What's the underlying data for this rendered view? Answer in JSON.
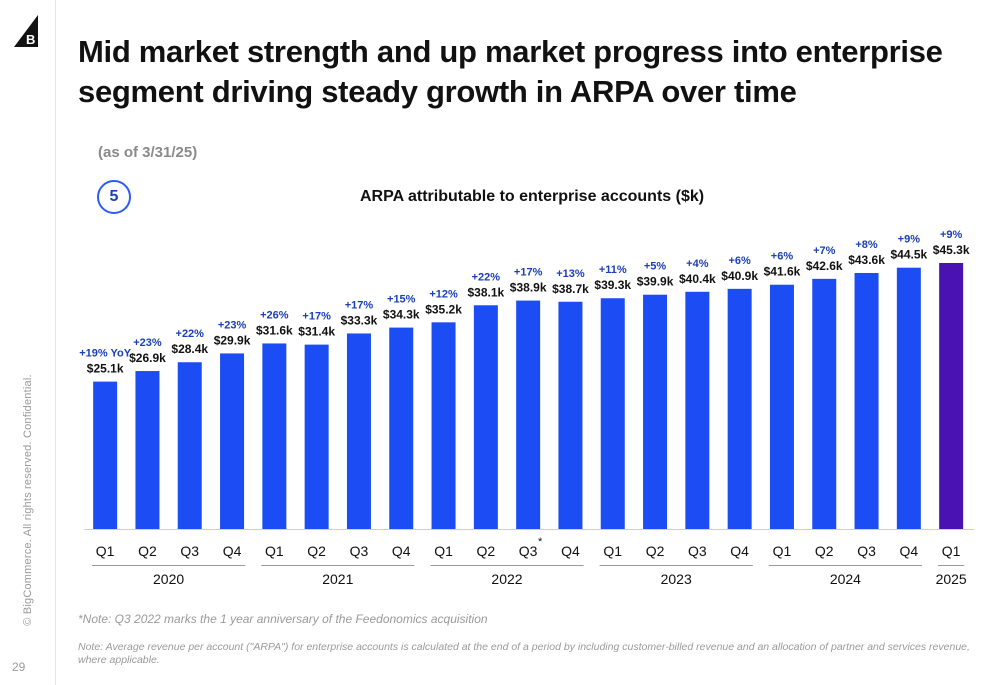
{
  "slide": {
    "title": "Mid market strength and up market progress into enterprise segment driving steady growth in ARPA over time",
    "as_of": "(as of 3/31/25)",
    "callout_number": "5",
    "page_number": "29",
    "side_text": "© BigCommerce.  All rights reserved. Confidential.",
    "note_star": "*Note: Q3 2022 marks the 1 year anniversary of the Feedonomics acquisition",
    "note_main": "Note: Average revenue per account (\"ARPA\") for enterprise accounts is calculated at the end of a period by including customer-billed revenue and an allocation of partner and services revenue, where applicable."
  },
  "colors": {
    "bar": "#1c4df4",
    "bar_latest": "#4a12b0",
    "growth_label": "#1a3fb8",
    "value_label": "#111111",
    "accent": "#2d5cf6"
  },
  "chart_data": {
    "type": "bar",
    "title": "ARPA attributable to enterprise accounts ($k)",
    "categories": [
      "Q1",
      "Q2",
      "Q3",
      "Q4",
      "Q1",
      "Q2",
      "Q3",
      "Q4",
      "Q1",
      "Q2",
      "Q3",
      "Q4",
      "Q1",
      "Q2",
      "Q3",
      "Q4",
      "Q1",
      "Q2",
      "Q3",
      "Q4",
      "Q1"
    ],
    "years": [
      {
        "label": "2020",
        "quarters": 4
      },
      {
        "label": "2021",
        "quarters": 4
      },
      {
        "label": "2022",
        "quarters": 4
      },
      {
        "label": "2023",
        "quarters": 4
      },
      {
        "label": "2024",
        "quarters": 4
      },
      {
        "label": "2025",
        "quarters": 1
      }
    ],
    "values": [
      25.1,
      26.9,
      28.4,
      29.9,
      31.6,
      31.4,
      33.3,
      34.3,
      35.2,
      38.1,
      38.9,
      38.7,
      39.3,
      39.9,
      40.4,
      40.9,
      41.6,
      42.6,
      43.6,
      44.5,
      45.3
    ],
    "value_labels": [
      "$25.1k",
      "$26.9k",
      "$28.4k",
      "$29.9k",
      "$31.6k",
      "$31.4k",
      "$33.3k",
      "$34.3k",
      "$35.2k",
      "$38.1k",
      "$38.9k",
      "$38.7k",
      "$39.3k",
      "$39.9k",
      "$40.4k",
      "$40.9k",
      "$41.6k",
      "$42.6k",
      "$43.6k",
      "$44.5k",
      "$45.3k"
    ],
    "growth_labels": [
      "+19% YoY",
      "+23%",
      "+22%",
      "+23%",
      "+26%",
      "+17%",
      "+17%",
      "+15%",
      "+12%",
      "+22%",
      "+17%",
      "+13%",
      "+11%",
      "+5%",
      "+4%",
      "+6%",
      "+6%",
      "+7%",
      "+8%",
      "+9%",
      "+9%"
    ],
    "asterisk_index": 10,
    "asterisk": "*",
    "ylim": [
      0,
      48
    ],
    "grid": false,
    "highlight_index": 20
  }
}
